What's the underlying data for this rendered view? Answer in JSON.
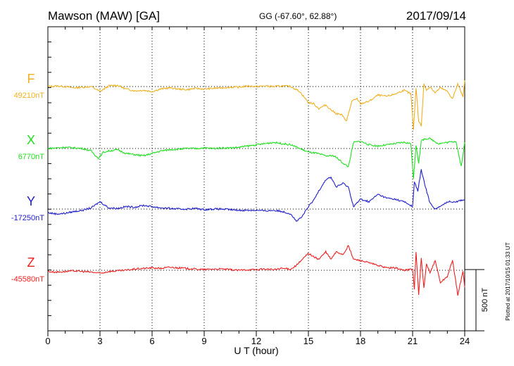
{
  "header": {
    "station": "Mawson (MAW)  [GA]",
    "coords": "GG (-67.60°,  62.88°)",
    "date": "2017/09/14"
  },
  "footer_note": "Plotted at 2017/10/15 01:33 UT",
  "chart_data": {
    "type": "line",
    "xlabel": "U T (hour)",
    "xlim": [
      0,
      24
    ],
    "x_ticks": [
      "0",
      "3",
      "6",
      "9",
      "12",
      "15",
      "18",
      "21",
      "24"
    ],
    "scale_bar": {
      "label": "500 nT",
      "value_nT": 500
    },
    "series": [
      {
        "name": "F",
        "baseline_label": "49210nT",
        "baseline_nT": 49210,
        "color": "#f0b020",
        "x": [
          0,
          0.5,
          1,
          1.5,
          2,
          2.5,
          3,
          3.5,
          4,
          4.5,
          5,
          5.5,
          6,
          6.5,
          7,
          7.5,
          8,
          8.5,
          9,
          9.5,
          10,
          10.5,
          11,
          11.5,
          12,
          12.5,
          13,
          13.5,
          14,
          14.5,
          15,
          15.3,
          15.6,
          16,
          16.3,
          16.6,
          16.9,
          17.2,
          17.5,
          17.8,
          18,
          18.5,
          19,
          19.5,
          20,
          20.5,
          20.9,
          21.05,
          21.2,
          21.35,
          21.5,
          21.65,
          21.8,
          22,
          22.3,
          22.6,
          23,
          23.3,
          23.6,
          23.9,
          24
        ],
        "values": [
          0,
          5,
          0,
          -10,
          -5,
          0,
          -40,
          5,
          10,
          -20,
          -35,
          -30,
          -40,
          -20,
          -10,
          -20,
          -25,
          -15,
          -20,
          -15,
          -10,
          -5,
          -5,
          5,
          0,
          5,
          0,
          5,
          0,
          -40,
          -130,
          -140,
          -180,
          -150,
          -190,
          -220,
          -230,
          -280,
          -120,
          -100,
          -140,
          -120,
          -70,
          -80,
          -60,
          -30,
          -60,
          -350,
          -10,
          -280,
          -320,
          20,
          -30,
          0,
          -50,
          -10,
          -40,
          -100,
          20,
          -80,
          50
        ]
      },
      {
        "name": "X",
        "baseline_label": "6770nT",
        "baseline_nT": 6770,
        "color": "#20e020",
        "x": [
          0,
          0.5,
          1,
          1.5,
          2,
          2.5,
          2.9,
          3.2,
          3.5,
          4,
          4.5,
          5,
          5.5,
          6,
          6.5,
          7,
          7.5,
          8,
          8.5,
          9,
          9.5,
          10,
          10.5,
          11,
          11.5,
          12,
          12.5,
          13,
          13.5,
          14,
          14.5,
          15,
          15.5,
          16,
          16.5,
          17,
          17.3,
          17.6,
          18,
          18.5,
          19,
          19.5,
          20,
          20.5,
          20.9,
          21.05,
          21.2,
          21.35,
          21.5,
          21.7,
          22,
          22.5,
          23,
          23.5,
          23.8,
          24
        ],
        "values": [
          0,
          5,
          10,
          5,
          0,
          -20,
          -80,
          -30,
          -20,
          -10,
          -40,
          -50,
          -60,
          -40,
          -20,
          -10,
          -5,
          0,
          0,
          5,
          0,
          5,
          5,
          10,
          20,
          30,
          40,
          50,
          40,
          30,
          0,
          -30,
          -40,
          -60,
          -60,
          -120,
          -150,
          50,
          60,
          30,
          20,
          30,
          40,
          50,
          40,
          -250,
          30,
          -120,
          60,
          80,
          80,
          40,
          50,
          60,
          -150,
          50
        ]
      },
      {
        "name": "Y",
        "baseline_label": "-17250nT",
        "baseline_nT": -17250,
        "color": "#2020cc",
        "x": [
          0,
          0.5,
          1,
          1.5,
          2,
          2.5,
          3,
          3.5,
          4,
          4.5,
          5,
          5.5,
          6,
          6.5,
          7,
          7.5,
          8,
          8.5,
          9,
          9.5,
          10,
          10.5,
          11,
          11.5,
          12,
          12.5,
          13,
          13.5,
          14,
          14.3,
          14.6,
          15,
          15.3,
          15.6,
          16,
          16.3,
          16.6,
          17,
          17.3,
          17.6,
          18,
          18.5,
          19,
          19.5,
          20,
          20.5,
          21,
          21.1,
          21.3,
          21.5,
          21.7,
          22,
          22.3,
          22.6,
          23,
          23.5,
          24
        ],
        "values": [
          -30,
          -40,
          -35,
          -20,
          -10,
          10,
          60,
          10,
          5,
          20,
          15,
          30,
          20,
          10,
          5,
          0,
          0,
          5,
          -5,
          0,
          0,
          -5,
          -10,
          -10,
          -10,
          -15,
          -10,
          -20,
          -40,
          -100,
          -70,
          20,
          70,
          150,
          240,
          260,
          180,
          210,
          180,
          20,
          80,
          60,
          120,
          90,
          80,
          60,
          20,
          220,
          150,
          320,
          200,
          50,
          0,
          20,
          60,
          60,
          80
        ]
      },
      {
        "name": "Z",
        "baseline_label": "-45580nT",
        "baseline_nT": -45580,
        "color": "#ee2020",
        "x": [
          0,
          0.5,
          1,
          1.5,
          2,
          2.5,
          3,
          3.5,
          4,
          4.5,
          5,
          5.5,
          6,
          6.5,
          7,
          7.5,
          8,
          8.5,
          9,
          9.5,
          10,
          10.5,
          11,
          11.5,
          12,
          12.5,
          13,
          13.5,
          14,
          14.3,
          14.6,
          15,
          15.3,
          15.6,
          16,
          16.3,
          16.6,
          17,
          17.3,
          17.6,
          18,
          18.5,
          19,
          19.5,
          20,
          20.5,
          21,
          21.1,
          21.2,
          21.35,
          21.5,
          21.65,
          21.8,
          22,
          22.3,
          22.6,
          23,
          23.3,
          23.6,
          23.9,
          24
        ],
        "values": [
          -10,
          -15,
          -10,
          -5,
          -10,
          -15,
          -25,
          -10,
          -5,
          0,
          10,
          15,
          20,
          15,
          25,
          20,
          15,
          10,
          5,
          10,
          10,
          5,
          0,
          5,
          5,
          10,
          5,
          15,
          10,
          40,
          80,
          140,
          110,
          90,
          150,
          90,
          150,
          130,
          200,
          90,
          80,
          60,
          40,
          20,
          20,
          0,
          10,
          -150,
          150,
          -200,
          100,
          -150,
          50,
          -20,
          80,
          -100,
          -50,
          80,
          -200,
          -10,
          -140
        ]
      }
    ]
  }
}
